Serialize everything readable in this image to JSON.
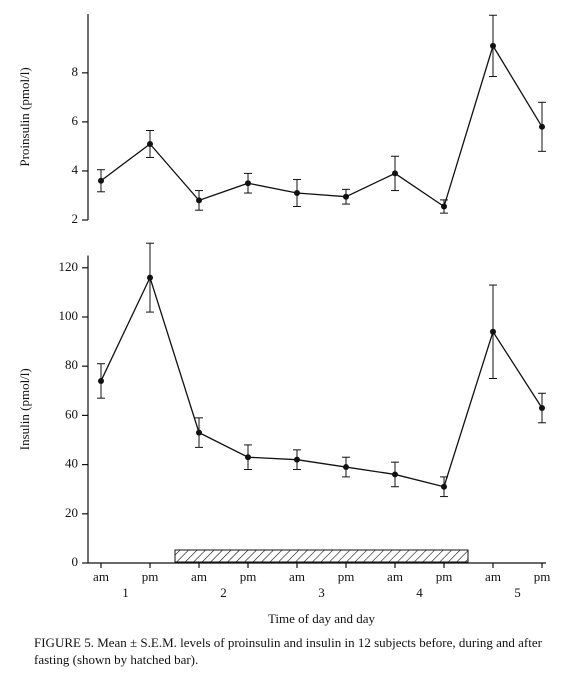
{
  "chart_data": [
    {
      "type": "line",
      "y_label": "Proinsulin (pmol/l)",
      "series": [
        {
          "color": "#111111",
          "values": [
            3.6,
            5.1,
            2.8,
            3.5,
            3.1,
            2.95,
            3.9,
            2.55,
            9.1,
            5.8
          ],
          "errors": [
            0.45,
            0.55,
            0.4,
            0.4,
            0.55,
            0.3,
            0.7,
            0.27,
            1.25,
            1.0
          ]
        }
      ],
      "ylim": [
        2,
        10.4
      ],
      "yticks": [
        2,
        4,
        6,
        8
      ]
    },
    {
      "type": "line",
      "y_label": "Insulin (pmol/l)",
      "x_label": "Time of day and day",
      "categories": [
        "am",
        "pm",
        "am",
        "pm",
        "am",
        "pm",
        "am",
        "pm",
        "am",
        "pm"
      ],
      "day_labels": [
        "1",
        "2",
        "3",
        "4",
        "5"
      ],
      "series": [
        {
          "color": "#111111",
          "values": [
            74,
            116,
            53,
            43,
            42,
            39,
            36,
            31,
            94,
            63
          ],
          "errors": [
            7,
            14,
            6,
            5,
            4,
            4,
            5,
            4,
            19,
            6
          ]
        }
      ],
      "ylim": [
        0,
        125
      ],
      "yticks": [
        0,
        20,
        40,
        60,
        80,
        100,
        120
      ]
    }
  ],
  "caption": "FIGURE 5. Mean ± S.E.M. levels of proinsulin and insulin in 12 subjects before, during and after fasting (shown by hatched bar)."
}
